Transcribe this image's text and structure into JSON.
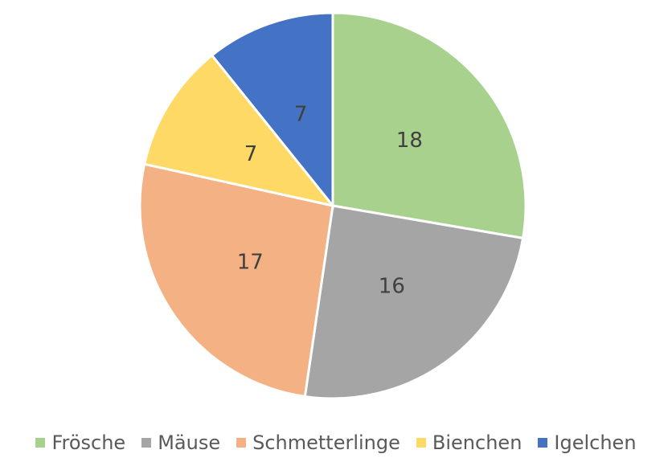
{
  "chart_data": {
    "type": "pie",
    "categories": [
      "Frösche",
      "Mäuse",
      "Schmetterlinge",
      "Bienchen",
      "Igelchen"
    ],
    "values": [
      18,
      16,
      17,
      7,
      7
    ],
    "colors": [
      "#a9d18e",
      "#a5a5a5",
      "#f4b183",
      "#ffd966",
      "#4472c4"
    ],
    "legend": "bottom"
  }
}
